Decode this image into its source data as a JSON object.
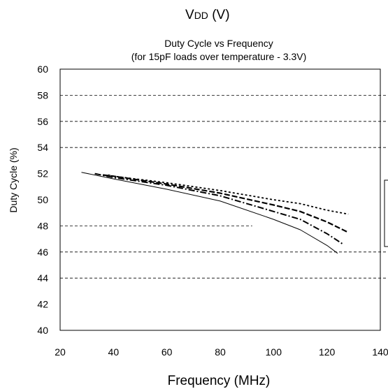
{
  "header": {
    "vdd_main": "V",
    "vdd_sub": "DD",
    "vdd_unit": " (V)"
  },
  "chart_data": {
    "type": "line",
    "title": "Duty Cycle vs Frequency",
    "subtitle": "(for 15pF loads over temperature - 3.3V)",
    "xlabel": "Frequency (MHz)",
    "ylabel": "Duty Cycle (%)",
    "xlim": [
      20,
      140
    ],
    "ylim": [
      40,
      60
    ],
    "x_ticks": [
      "20",
      "40",
      "60",
      "80",
      "100",
      "120",
      "140"
    ],
    "y_ticks": [
      "40",
      "42",
      "44",
      "46",
      "48",
      "50",
      "52",
      "54",
      "56",
      "58",
      "60"
    ],
    "grid_y": [
      44,
      46,
      48,
      54,
      56,
      58
    ],
    "grid": "dashed horizontal lines",
    "series": [
      {
        "style": "solid",
        "x": [
          28,
          40,
          60,
          80,
          100,
          110,
          120,
          124
        ],
        "y": [
          52.1,
          51.6,
          50.8,
          49.9,
          48.5,
          47.7,
          46.5,
          45.9
        ]
      },
      {
        "style": "dash-dot",
        "x": [
          33,
          40,
          60,
          80,
          100,
          110,
          120,
          126
        ],
        "y": [
          52.0,
          51.7,
          51.1,
          50.3,
          49.1,
          48.5,
          47.4,
          46.6
        ]
      },
      {
        "style": "long-dash",
        "x": [
          36,
          40,
          60,
          80,
          100,
          110,
          120,
          128
        ],
        "y": [
          51.9,
          51.8,
          51.2,
          50.5,
          49.6,
          49.1,
          48.3,
          47.5
        ]
      },
      {
        "style": "short-dash",
        "x": [
          38,
          40,
          60,
          80,
          100,
          110,
          120,
          128
        ],
        "y": [
          51.9,
          51.8,
          51.3,
          50.7,
          50.0,
          49.7,
          49.2,
          48.9
        ]
      }
    ]
  }
}
